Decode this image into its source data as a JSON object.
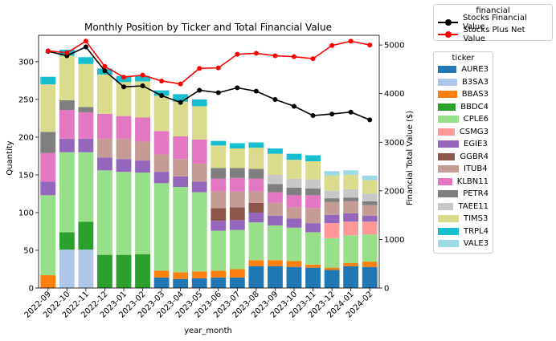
{
  "chart_data": {
    "type": "bar",
    "stacked": true,
    "title": "Monthly Position by Ticker and Total Financial Value",
    "xlabel": "year_month",
    "ylabel": "Quantity",
    "y2label": "Financial Total Value ($)",
    "ylim": [
      0,
      335
    ],
    "y2lim": [
      0,
      5200
    ],
    "yticks": [
      0,
      50,
      100,
      150,
      200,
      250,
      300
    ],
    "y2ticks": [
      0,
      1000,
      2000,
      3000,
      4000,
      5000
    ],
    "categories": [
      "2022-09",
      "2022-10",
      "2022-11",
      "2022-12",
      "2023-01",
      "2023-02",
      "2023-03",
      "2023-04",
      "2023-05",
      "2023-06",
      "2023-07",
      "2023-08",
      "2023-09",
      "2023-10",
      "2023-11",
      "2023-12",
      "2024-01",
      "2024-02"
    ],
    "series": [
      {
        "name": "AURE3",
        "color": "#1f77b4",
        "values": [
          0,
          0,
          0,
          0,
          0,
          0,
          14,
          12,
          13,
          14,
          14,
          29,
          29,
          28,
          27,
          24,
          29,
          28
        ]
      },
      {
        "name": "B3SA3",
        "color": "#aec7e8",
        "values": [
          0,
          51,
          51,
          0,
          0,
          0,
          0,
          0,
          0,
          0,
          0,
          0,
          0,
          0,
          0,
          0,
          0,
          0
        ]
      },
      {
        "name": "BBAS3",
        "color": "#ff7f0e",
        "values": [
          17,
          0,
          0,
          0,
          0,
          0,
          9,
          9,
          9,
          9,
          11,
          8,
          8,
          8,
          4,
          3,
          4,
          7
        ]
      },
      {
        "name": "BBDC4",
        "color": "#2ca02c",
        "values": [
          0,
          23,
          37,
          44,
          44,
          45,
          0,
          0,
          0,
          0,
          0,
          0,
          0,
          0,
          0,
          0,
          0,
          0
        ]
      },
      {
        "name": "CPLE6",
        "color": "#98df8a",
        "values": [
          106,
          106,
          92,
          112,
          110,
          108,
          116,
          113,
          105,
          53,
          52,
          50,
          46,
          44,
          43,
          39,
          37,
          36
        ]
      },
      {
        "name": "CSMG3",
        "color": "#ff9896",
        "values": [
          0,
          0,
          0,
          0,
          0,
          0,
          0,
          0,
          0,
          0,
          0,
          0,
          0,
          0,
          0,
          20,
          18,
          17
        ]
      },
      {
        "name": "EGIE3",
        "color": "#9467bd",
        "values": [
          18,
          18,
          18,
          17,
          17,
          16,
          15,
          14,
          14,
          13,
          13,
          13,
          13,
          12,
          12,
          11,
          11,
          8
        ]
      },
      {
        "name": "GGBR4",
        "color": "#8c564b",
        "values": [
          0,
          0,
          0,
          0,
          0,
          0,
          0,
          0,
          0,
          17,
          17,
          13,
          0,
          0,
          0,
          0,
          0,
          0
        ]
      },
      {
        "name": "ITUB4",
        "color": "#c49c94",
        "values": [
          0,
          0,
          0,
          25,
          27,
          25,
          23,
          23,
          24,
          22,
          21,
          15,
          17,
          15,
          20,
          17,
          16,
          14
        ]
      },
      {
        "name": "KLBN11",
        "color": "#e377c2",
        "values": [
          38,
          38,
          35,
          33,
          30,
          32,
          31,
          30,
          32,
          17,
          18,
          17,
          14,
          16,
          17,
          0,
          0,
          0
        ]
      },
      {
        "name": "PETR4",
        "color": "#7f7f7f",
        "values": [
          28,
          13,
          7,
          0,
          0,
          0,
          0,
          0,
          0,
          14,
          13,
          13,
          11,
          10,
          9,
          5,
          5,
          5
        ]
      },
      {
        "name": "TAEE11",
        "color": "#c7c7c7",
        "values": [
          0,
          0,
          0,
          0,
          0,
          0,
          0,
          0,
          0,
          0,
          0,
          0,
          12,
          12,
          12,
          10,
          11,
          10
        ]
      },
      {
        "name": "TIMS3",
        "color": "#dbdb8d",
        "values": [
          63,
          59,
          57,
          52,
          45,
          48,
          47,
          46,
          44,
          30,
          26,
          28,
          28,
          25,
          24,
          20,
          19,
          18
        ]
      },
      {
        "name": "TRPL4",
        "color": "#17becf",
        "values": [
          10,
          8,
          9,
          8,
          8,
          7,
          7,
          10,
          9,
          6,
          7,
          7,
          7,
          8,
          8,
          0,
          0,
          0
        ]
      },
      {
        "name": "VALE3",
        "color": "#9edae5",
        "values": [
          0,
          0,
          0,
          0,
          0,
          0,
          0,
          0,
          0,
          0,
          0,
          0,
          0,
          0,
          0,
          6,
          6,
          6
        ]
      }
    ],
    "lines": [
      {
        "name": "Stocks Financial Value",
        "color": "#000000",
        "values": [
          4870,
          4780,
          4960,
          4470,
          4140,
          4160,
          3960,
          3820,
          4070,
          4020,
          4120,
          4050,
          3880,
          3740,
          3550,
          3580,
          3620,
          3460
        ]
      },
      {
        "name": "Stocks Plus Net Value",
        "color": "#ff0000",
        "values": [
          4880,
          4840,
          5080,
          4560,
          4340,
          4380,
          4260,
          4200,
          4520,
          4530,
          4810,
          4830,
          4780,
          4760,
          4720,
          4990,
          5080,
          5000
        ]
      }
    ],
    "legend_financial_title": "financial",
    "legend_ticker_title": "ticker",
    "legend_placement": "outside-right"
  }
}
